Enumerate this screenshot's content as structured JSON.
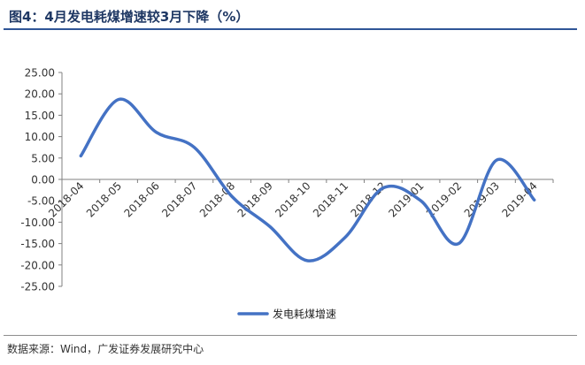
{
  "header": {
    "title": "图4：4月发电耗煤增速较3月下降（%）"
  },
  "footer": {
    "source": "数据来源：Wind，广发证券发展研究中心"
  },
  "chart_data": {
    "type": "line",
    "title": "",
    "xlabel": "",
    "ylabel": "",
    "categories": [
      "2018-04",
      "2018-05",
      "2018-06",
      "2018-07",
      "2018-08",
      "2018-09",
      "2018-10",
      "2018-11",
      "2018-12",
      "2019-01",
      "2019-02",
      "2019-03",
      "2019-04"
    ],
    "series": [
      {
        "name": "发电耗煤增速",
        "values": [
          5.5,
          18.7,
          11.0,
          7.5,
          -4.0,
          -11.0,
          -19.0,
          -13.5,
          -2.0,
          -5.0,
          -15.0,
          4.5,
          -4.8
        ],
        "color": "#4472c4"
      }
    ],
    "ylim": [
      -25,
      25
    ],
    "yticks": [
      "25.00",
      "20.00",
      "15.00",
      "10.00",
      "5.00",
      "0.00",
      "-5.00",
      "-10.00",
      "-15.00",
      "-20.00",
      "-25.00"
    ],
    "grid": false,
    "legend_position": "bottom",
    "line_style": "smooth"
  }
}
